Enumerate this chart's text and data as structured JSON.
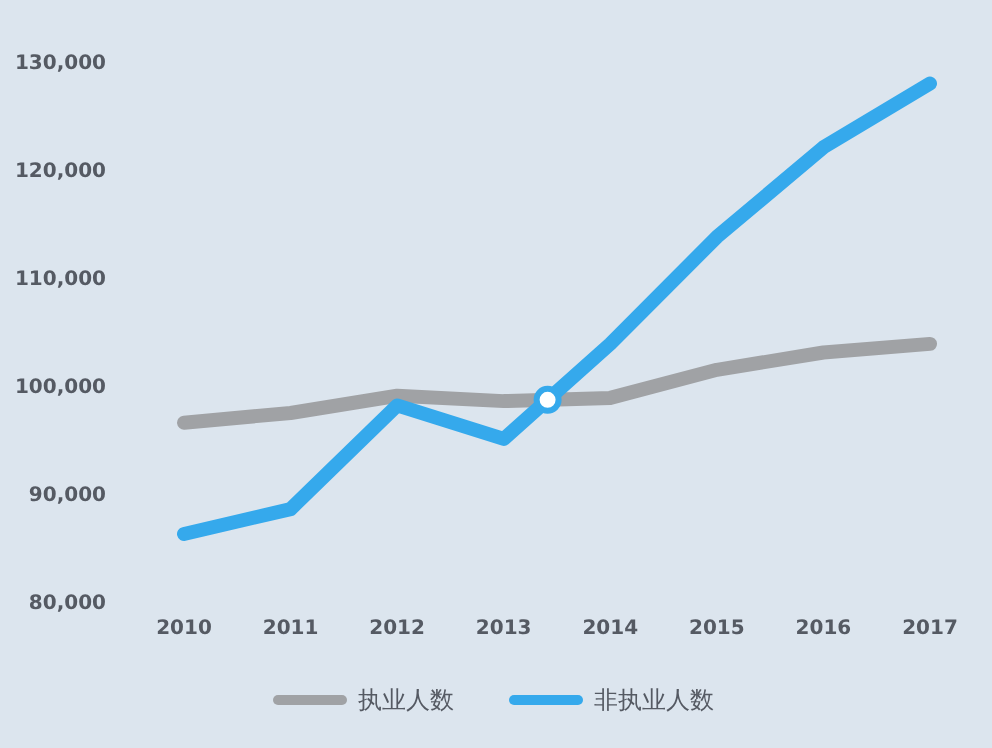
{
  "chart_data": {
    "type": "line",
    "categories": [
      "2010",
      "2011",
      "2012",
      "2013",
      "2014",
      "2015",
      "2016",
      "2017"
    ],
    "series": [
      {
        "name": "执业人数",
        "color": "#a0a2a5",
        "values": [
          96600,
          97500,
          99100,
          98600,
          98900,
          101500,
          103100,
          103900
        ]
      },
      {
        "name": "非执业人数",
        "color": "#35a9ec",
        "values": [
          86300,
          88600,
          98200,
          95100,
          103900,
          113800,
          122100,
          128000
        ]
      }
    ],
    "ylim": [
      80000,
      130000
    ],
    "yticks": [
      {
        "value": 80000,
        "label": "80,000"
      },
      {
        "value": 90000,
        "label": "90,000"
      },
      {
        "value": 100000,
        "label": "100,000"
      },
      {
        "value": 110000,
        "label": "110,000"
      },
      {
        "value": 120000,
        "label": "120,000"
      },
      {
        "value": 130000,
        "label": "130,000"
      }
    ],
    "grid": false,
    "legend": "bottom",
    "marker": "none",
    "line_style": "solid"
  }
}
